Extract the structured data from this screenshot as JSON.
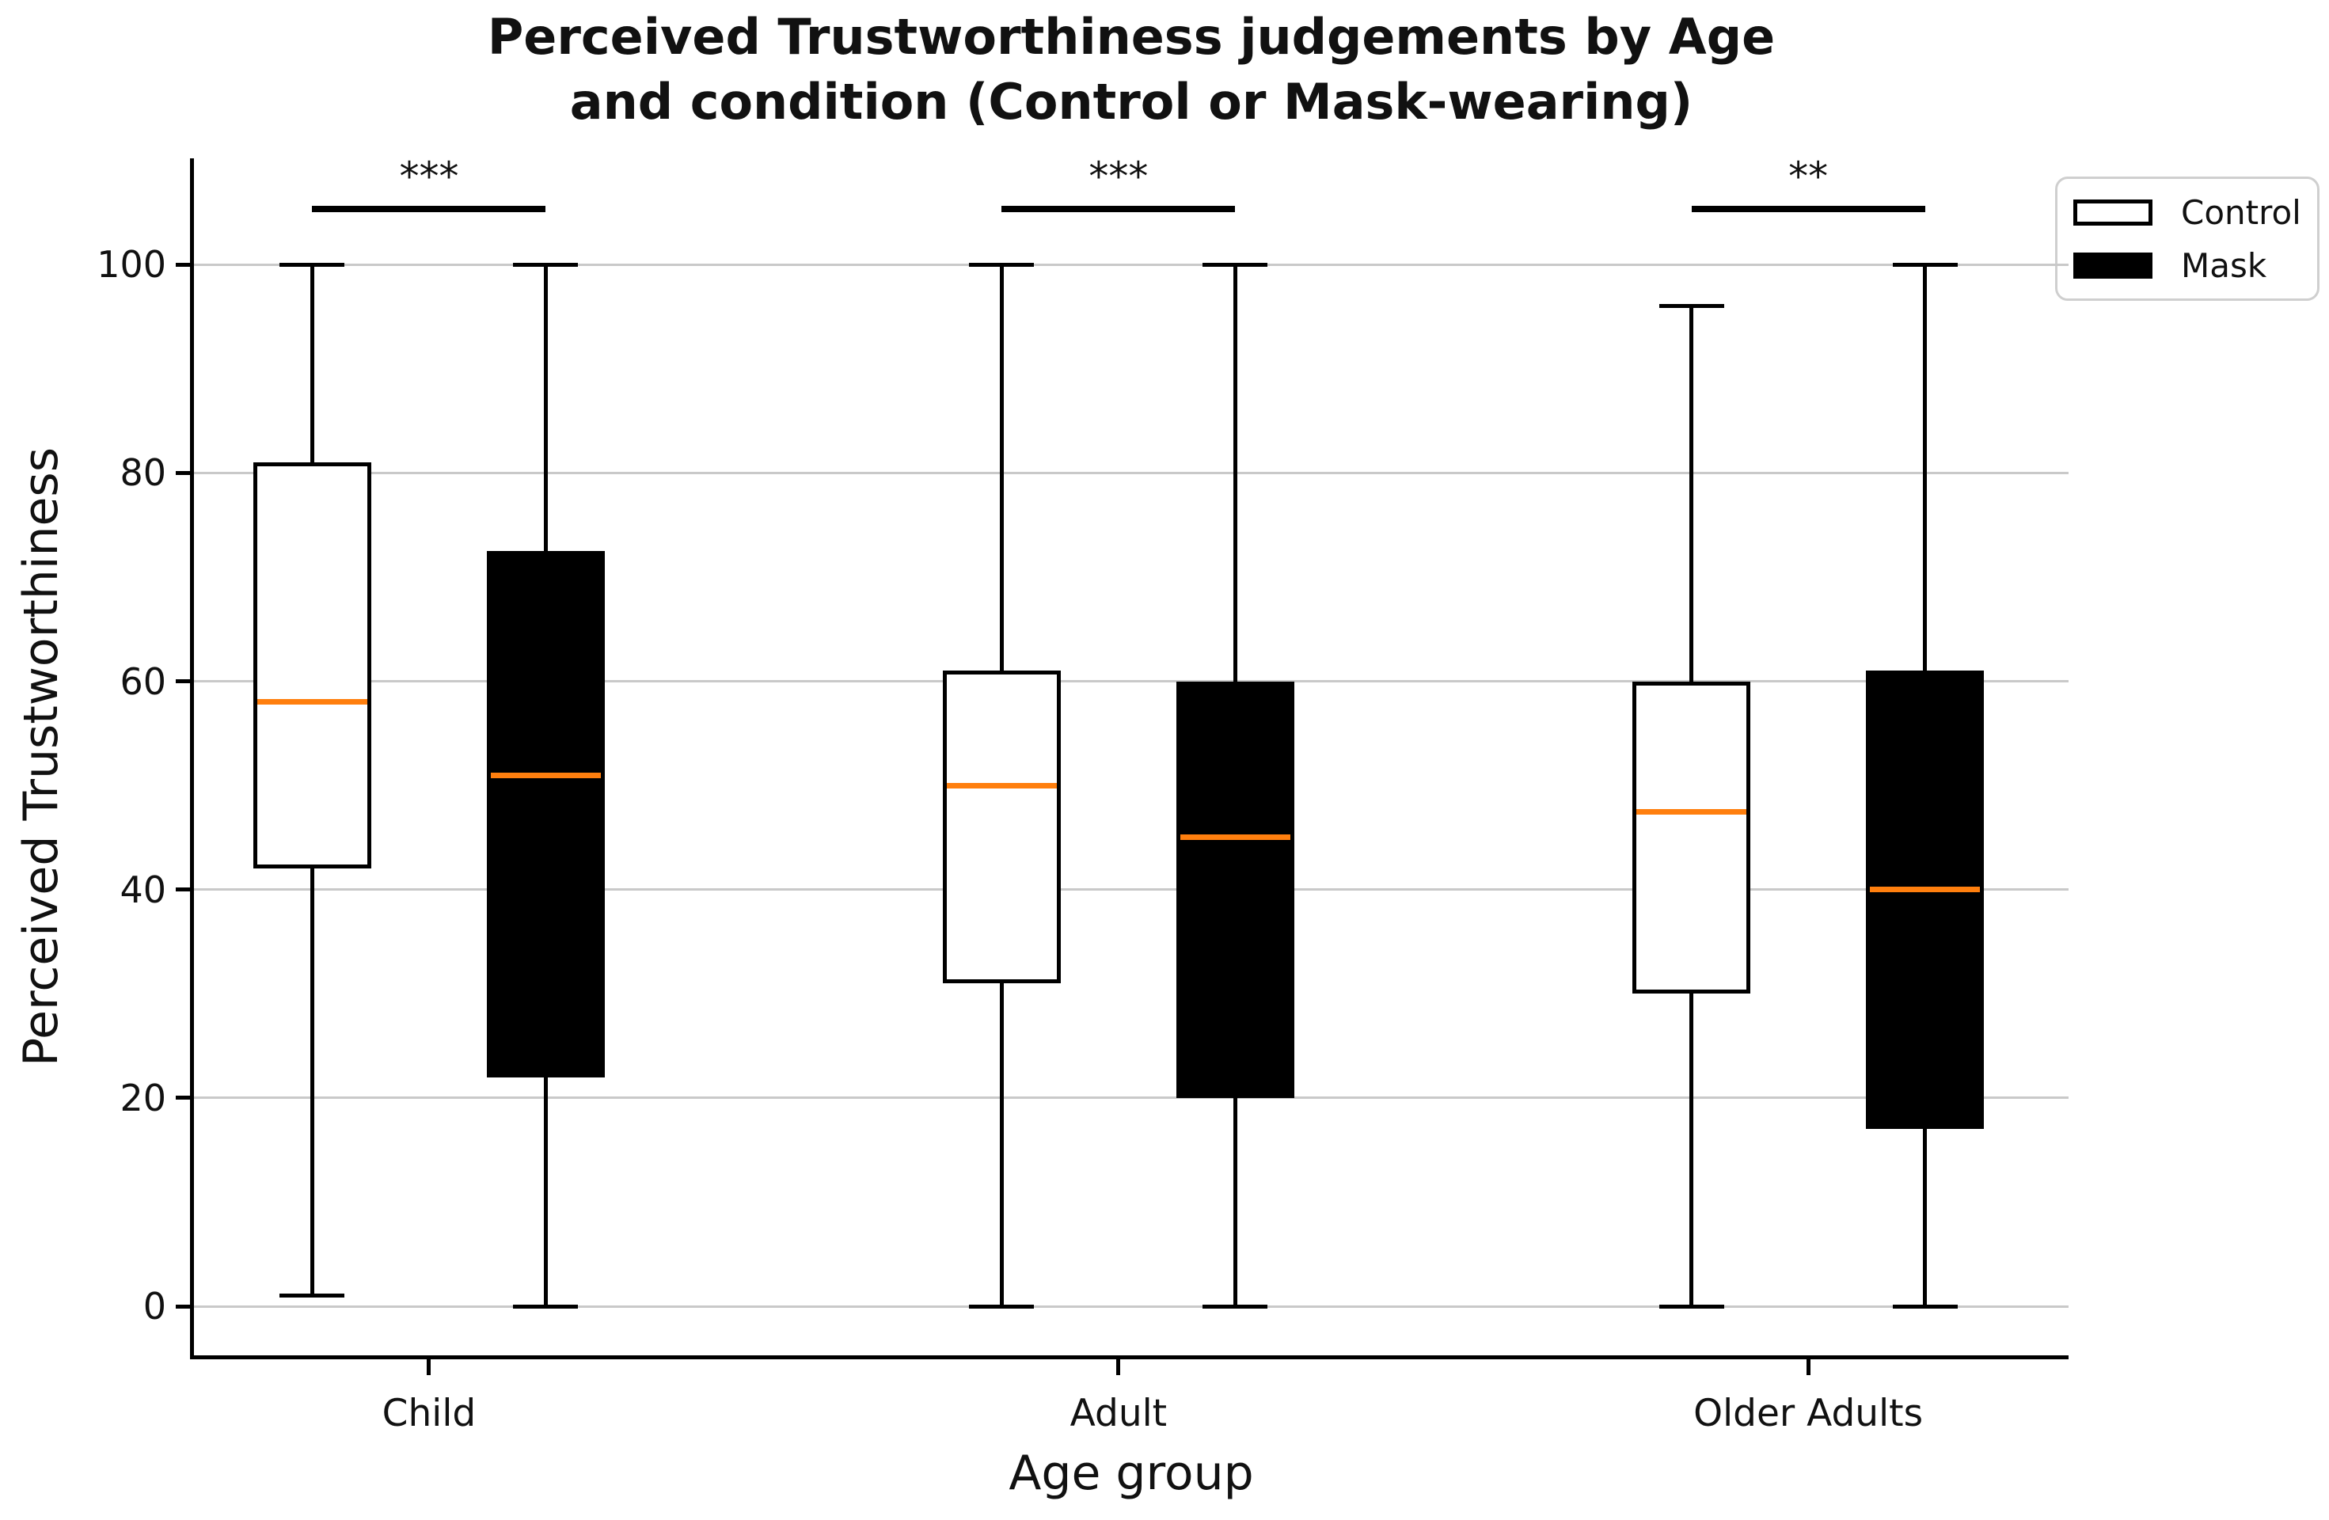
{
  "figure": {
    "title_line1": "Perceived Trustworthiness judgements by Age",
    "title_line2": "and condition (Control or Mask-wearing)"
  },
  "chart_data": {
    "type": "boxplot",
    "title": "Perceived Trustworthiness judgements by Age and condition (Control or Mask-wearing)",
    "xlabel": "Age group",
    "ylabel": "Perceived Trustworthiness",
    "categories": [
      "Child",
      "Adult",
      "Older Adults"
    ],
    "yticks": [
      0,
      20,
      40,
      60,
      80,
      100
    ],
    "ylim": [
      -4.7,
      110.2
    ],
    "grid": "horizontal gridlines at yticks",
    "legend": {
      "position": "top-right outside plot",
      "entries": [
        {
          "label": "Control",
          "fill": "#ffffff"
        },
        {
          "label": "Mask",
          "fill": "#000000"
        }
      ]
    },
    "series": [
      {
        "name": "Control",
        "fill": "#ffffff",
        "boxes": [
          {
            "category": "Child",
            "whislo": 1,
            "q1": 42,
            "med": 58,
            "q3": 81,
            "whishi": 100
          },
          {
            "category": "Adult",
            "whislo": 0,
            "q1": 31,
            "med": 50,
            "q3": 61,
            "whishi": 100
          },
          {
            "category": "Older Adults",
            "whislo": 0,
            "q1": 30,
            "med": 47.5,
            "q3": 60,
            "whishi": 96
          }
        ]
      },
      {
        "name": "Mask",
        "fill": "#000000",
        "boxes": [
          {
            "category": "Child",
            "whislo": 0,
            "q1": 22,
            "med": 51,
            "q3": 72.5,
            "whishi": 100
          },
          {
            "category": "Adult",
            "whislo": 0,
            "q1": 20,
            "med": 45,
            "q3": 60,
            "whishi": 100
          },
          {
            "category": "Older Adults",
            "whislo": 0,
            "q1": 17,
            "med": 40,
            "q3": 61,
            "whishi": 100
          }
        ]
      }
    ],
    "significance": [
      {
        "category": "Child",
        "label": "***",
        "bar_y": 105.3,
        "label_y": 108.3
      },
      {
        "category": "Adult",
        "label": "***",
        "bar_y": 105.3,
        "label_y": 108.3
      },
      {
        "category": "Older Adults",
        "label": "**",
        "bar_y": 105.3,
        "label_y": 108.3
      }
    ],
    "colors": {
      "median": "#ff7f0e",
      "box_edge": "#000000",
      "grid_line": "#c9c9c9",
      "spine": "#000000",
      "background": "#ffffff"
    }
  }
}
